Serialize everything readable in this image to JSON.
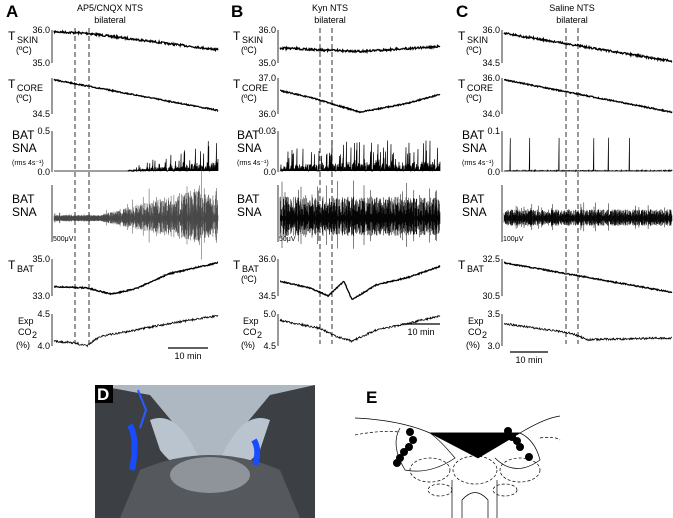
{
  "panels": [
    {
      "letter": "A",
      "treatment": [
        "AP5/CNQX NTS",
        "bilateral"
      ],
      "temp_rows": [
        {
          "name": "T",
          "sub": "SKIN",
          "unit": "(ºC)",
          "ticks": [
            "36.0",
            "35.0"
          ]
        },
        {
          "name": "T",
          "sub": "CORE",
          "unit": "(ºC)",
          "ticks": [
            "34.5"
          ]
        }
      ],
      "rms_row": {
        "lines": [
          "BAT",
          "SNA",
          "(rms 4s⁻¹)"
        ],
        "ticks": [
          "0.5",
          "0.0"
        ]
      },
      "raw_row": {
        "lines": [
          "BAT",
          "SNA"
        ],
        "scale": "500μV"
      },
      "bat_row": {
        "name": "T",
        "sub": "BAT",
        "ticks": [
          "35.0",
          "33.0"
        ]
      },
      "co2_row": {
        "pre": "Exp",
        "name": "CO",
        "sub": "2",
        "unit": "(%)",
        "ticks": [
          "4.5",
          "4.0"
        ]
      },
      "time_scale": "10 min"
    },
    {
      "letter": "B",
      "treatment": [
        "Kyn NTS",
        "bilateral"
      ],
      "temp_rows": [
        {
          "name": "T",
          "sub": "SKIN",
          "unit": "(ºC)",
          "ticks": [
            "36.0",
            "35.0"
          ]
        },
        {
          "name": "T",
          "sub": "CORE",
          "unit": "(ºC)",
          "ticks": [
            "37.0",
            "36.0"
          ]
        }
      ],
      "rms_row": {
        "lines": [
          "BAT",
          "SNA",
          "(rms 4s⁻¹)"
        ],
        "ticks": [
          "0.03",
          "0.0"
        ]
      },
      "raw_row": {
        "lines": [
          "BAT",
          "SNA"
        ],
        "scale": "50μV"
      },
      "bat_row": {
        "name": "T",
        "sub": "BAT",
        "unit": "(ºC)",
        "ticks": [
          "36.0",
          "34.5"
        ]
      },
      "co2_row": {
        "pre": "Exp",
        "name": "CO",
        "sub": "2",
        "unit": "(%)",
        "ticks": [
          "5.0",
          "4.5"
        ]
      },
      "time_scale": "10 min"
    },
    {
      "letter": "C",
      "treatment": [
        "Saline NTS",
        "bilateral"
      ],
      "temp_rows": [
        {
          "name": "T",
          "sub": "SKIN",
          "unit": "(ºC)",
          "ticks": [
            "36.0",
            "34.5"
          ]
        },
        {
          "name": "T",
          "sub": "CORE",
          "unit": "(ºC)",
          "ticks": [
            "36.0",
            "34.0"
          ]
        }
      ],
      "rms_row": {
        "lines": [
          "BAT",
          "SNA",
          "(rms 4s⁻¹)"
        ],
        "ticks": [
          "0.1",
          "0.0"
        ]
      },
      "raw_row": {
        "lines": [
          "BAT",
          "SNA"
        ],
        "scale": "100μV"
      },
      "bat_row": {
        "name": "T",
        "sub": "BAT",
        "ticks": [
          "32.5",
          "30.5"
        ]
      },
      "co2_row": {
        "pre": "Exp",
        "name": "CO",
        "sub": "2",
        "unit": "(%)",
        "ticks": [
          "3.5",
          "3.0"
        ]
      },
      "time_scale": "10 min"
    }
  ],
  "histology": {
    "letter": "D"
  },
  "schematic": {
    "letter": "E"
  }
}
